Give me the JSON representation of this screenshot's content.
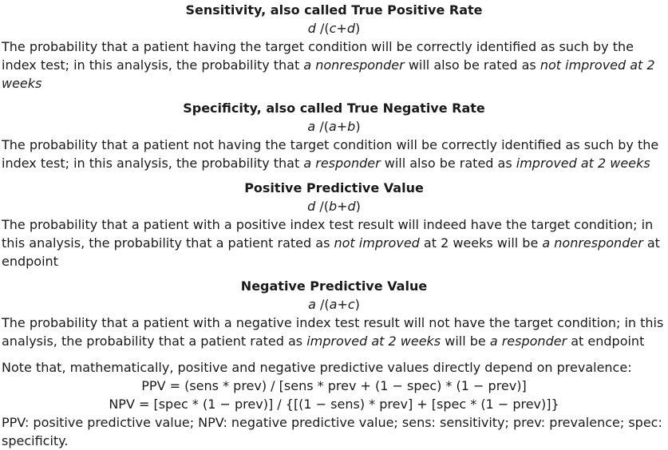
{
  "sections": [
    {
      "title": "Sensitivity, also called True Positive Rate",
      "formula": [
        "d",
        " /(",
        "c",
        "+",
        "d",
        ")"
      ],
      "body": [
        {
          "t": "The probability that a patient having the target condition will be correctly identified as such by the index test; in this analysis, the probability that ",
          "i": false
        },
        {
          "t": "a nonresponder",
          "i": true
        },
        {
          "t": " will also be rated as ",
          "i": false
        },
        {
          "t": "not improved at 2 weeks",
          "i": true
        }
      ]
    },
    {
      "title": "Specificity, also called True Negative Rate",
      "formula": [
        "a",
        " /(",
        "a",
        "+",
        "b",
        ")"
      ],
      "body": [
        {
          "t": "The probability that a patient not having the target condition will be correctly identified as such by the index test; in this analysis, the probability that ",
          "i": false
        },
        {
          "t": "a responder",
          "i": true
        },
        {
          "t": " will also be rated as ",
          "i": false
        },
        {
          "t": "improved at 2 weeks",
          "i": true
        }
      ]
    },
    {
      "title": "Positive Predictive Value",
      "formula": [
        "d",
        " /(",
        "b",
        "+",
        "d",
        ")"
      ],
      "body": [
        {
          "t": "The probability that a patient with a positive index test result will indeed have the target condition; in this analysis, the probability that a patient rated as ",
          "i": false
        },
        {
          "t": "not improved",
          "i": true
        },
        {
          "t": " at 2 weeks will be ",
          "i": false
        },
        {
          "t": "a nonresponder",
          "i": true
        },
        {
          "t": " at endpoint",
          "i": false
        }
      ]
    },
    {
      "title": "Negative Predictive Value",
      "formula": [
        "a",
        " /(",
        "a",
        "+",
        "c",
        ")"
      ],
      "body": [
        {
          "t": "The probability that a patient with a negative index test result will not have the target condition; in this analysis, the probability that a patient rated as ",
          "i": false
        },
        {
          "t": "improved at 2 weeks",
          "i": true
        },
        {
          "t": " will be ",
          "i": false
        },
        {
          "t": "a responder",
          "i": true
        },
        {
          "t": " at endpoint",
          "i": false
        }
      ]
    }
  ],
  "note": {
    "intro": "Note that, mathematically, positive and negative predictive values directly depend on prevalence:",
    "ppv_eq": "PPV = (sens * prev) / [sens * prev + (1 − spec) * (1 − prev)]",
    "npv_eq": "NPV = [spec * (1 − prev)] / {[(1 − sens) * prev] + [spec * (1 − prev)]}",
    "abbreviations": "PPV: positive predictive value; NPV: negative predictive value; sens: sensitivity; prev: prevalence; spec: specificity."
  }
}
